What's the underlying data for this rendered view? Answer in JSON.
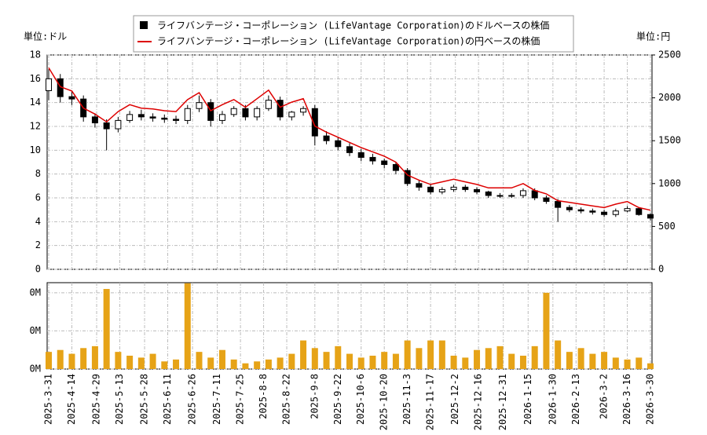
{
  "chart_data": {
    "type": "candlestick",
    "legend": [
      "ライフバンテージ・コーポレーション (LifeVantage Corporation)のドルベースの株価",
      "ライフバンテージ・コーポレーション (LifeVantage Corporation)の円ベースの株価"
    ],
    "y_unit": "単位:ドル",
    "y2_unit": "単位:円",
    "x": [
      "2025-3-31",
      "2025-4-7",
      "2025-4-14",
      "2025-4-21",
      "2025-4-28",
      "2025-5-5",
      "2025-5-12",
      "2025-5-19",
      "2025-5-26",
      "2025-6-2",
      "2025-6-9",
      "2025-6-16",
      "2025-6-23",
      "2025-6-30",
      "2025-7-7",
      "2025-7-14",
      "2025-7-21",
      "2025-7-28",
      "2025-8-4",
      "2025-8-11",
      "2025-8-18",
      "2025-8-25",
      "2025-9-1",
      "2025-9-8",
      "2025-9-15",
      "2025-9-22",
      "2025-9-29",
      "2025-10-6",
      "2025-10-13",
      "2025-10-20",
      "2025-10-27",
      "2025-11-3",
      "2025-11-10",
      "2025-11-17",
      "2025-11-24",
      "2025-12-1",
      "2025-12-8",
      "2025-12-15",
      "2025-12-22",
      "2025-12-29",
      "2026-1-5",
      "2026-1-12",
      "2026-1-19",
      "2026-1-26",
      "2026-2-2",
      "2026-2-9",
      "2026-2-16",
      "2026-2-23",
      "2026-3-2",
      "2026-3-9",
      "2026-3-16",
      "2026-3-23",
      "2026-3-30"
    ],
    "open": [
      15.0,
      16.0,
      14.5,
      14.3,
      12.8,
      12.3,
      11.8,
      12.5,
      13.0,
      12.8,
      12.7,
      12.6,
      12.5,
      13.5,
      14.0,
      12.5,
      13.0,
      13.5,
      12.8,
      13.5,
      14.2,
      12.8,
      13.2,
      13.5,
      11.2,
      10.8,
      10.3,
      9.8,
      9.4,
      9.1,
      8.8,
      8.3,
      7.2,
      6.9,
      6.5,
      6.7,
      6.9,
      6.7,
      6.5,
      6.2,
      6.2,
      6.2,
      6.6,
      6.0,
      5.7,
      5.2,
      5.0,
      4.9,
      4.8,
      4.6,
      4.9,
      5.1,
      4.6
    ],
    "high": [
      16.8,
      16.4,
      15.0,
      14.6,
      13.1,
      12.6,
      12.8,
      13.3,
      13.4,
      13.1,
      13.0,
      12.9,
      13.8,
      14.6,
      14.3,
      13.3,
      13.7,
      13.8,
      13.7,
      14.6,
      14.5,
      13.3,
      13.7,
      13.8,
      11.6,
      11.1,
      10.6,
      10.1,
      9.7,
      9.3,
      9.0,
      8.5,
      7.5,
      7.1,
      6.9,
      7.1,
      7.1,
      6.9,
      6.6,
      6.4,
      6.4,
      6.8,
      6.8,
      6.2,
      5.9,
      5.4,
      5.2,
      5.1,
      5.0,
      5.1,
      5.3,
      5.2,
      4.7
    ],
    "low": [
      14.2,
      14.0,
      13.8,
      12.4,
      11.9,
      10.0,
      11.5,
      12.3,
      12.5,
      12.4,
      12.3,
      12.2,
      12.2,
      13.2,
      12.0,
      12.2,
      12.8,
      12.5,
      12.5,
      13.3,
      12.5,
      12.5,
      12.9,
      10.4,
      10.5,
      10.0,
      9.5,
      9.1,
      8.8,
      8.5,
      8.0,
      7.0,
      6.6,
      6.3,
      6.3,
      6.5,
      6.5,
      6.3,
      6.0,
      6.0,
      6.0,
      6.0,
      5.8,
      5.5,
      4.0,
      4.8,
      4.7,
      4.6,
      4.4,
      4.4,
      4.8,
      4.5,
      4.1
    ],
    "close": [
      16.0,
      14.5,
      14.3,
      12.8,
      12.3,
      11.8,
      12.5,
      13.0,
      12.8,
      12.7,
      12.6,
      12.5,
      13.5,
      14.0,
      12.5,
      13.0,
      13.5,
      12.8,
      13.5,
      14.2,
      12.8,
      13.2,
      13.5,
      11.2,
      10.8,
      10.3,
      9.8,
      9.4,
      9.1,
      8.8,
      8.3,
      7.2,
      6.9,
      6.5,
      6.7,
      6.9,
      6.7,
      6.5,
      6.2,
      6.2,
      6.2,
      6.6,
      6.0,
      5.7,
      5.2,
      5.0,
      4.9,
      4.8,
      4.6,
      4.9,
      5.1,
      4.6,
      4.3
    ],
    "candle_color": "#000000",
    "series": [
      {
        "name": "ライフバンテージ・コーポレーション (LifeVantage Corporation)の円ベースの株価",
        "color": "#dd0000",
        "axis": "y2",
        "values": [
          2350,
          2130,
          2080,
          1880,
          1810,
          1720,
          1840,
          1920,
          1880,
          1870,
          1850,
          1840,
          1980,
          2060,
          1850,
          1920,
          1980,
          1890,
          1990,
          2090,
          1890,
          1950,
          1990,
          1670,
          1600,
          1540,
          1480,
          1420,
          1370,
          1320,
          1250,
          1100,
          1040,
          990,
          1020,
          1050,
          1020,
          990,
          950,
          950,
          950,
          1000,
          920,
          880,
          800,
          780,
          760,
          740,
          720,
          760,
          790,
          720,
          690
        ]
      }
    ],
    "volume": {
      "color": "#e6a317",
      "values": [
        90000,
        100000,
        80000,
        110000,
        120000,
        420000,
        90000,
        70000,
        60000,
        80000,
        40000,
        50000,
        450000,
        90000,
        60000,
        100000,
        50000,
        30000,
        40000,
        50000,
        60000,
        80000,
        150000,
        110000,
        90000,
        120000,
        80000,
        60000,
        70000,
        90000,
        80000,
        150000,
        110000,
        150000,
        150000,
        70000,
        60000,
        100000,
        110000,
        120000,
        80000,
        70000,
        120000,
        400000,
        150000,
        90000,
        110000,
        80000,
        90000,
        60000,
        50000,
        60000,
        30000
      ],
      "ylim": [
        0,
        453000
      ],
      "yticks": [
        {
          "value": 0,
          "label": "0M"
        },
        {
          "value": 200000,
          "label": "0M"
        },
        {
          "value": 400000,
          "label": "0M"
        }
      ]
    },
    "xlim": [
      "2025-3-31",
      "2026-3-30"
    ],
    "xticks": [
      "2025-3-31",
      "2025-4-14",
      "2025-4-29",
      "2025-5-13",
      "2025-5-28",
      "2025-6-11",
      "2025-6-26",
      "2025-7-11",
      "2025-7-25",
      "2025-8-8",
      "2025-8-22",
      "2025-9-8",
      "2025-9-22",
      "2025-10-6",
      "2025-10-20",
      "2025-11-3",
      "2025-11-17",
      "2025-12-2",
      "2025-12-16",
      "2025-12-31",
      "2026-1-15",
      "2026-1-30",
      "2026-2-13",
      "2026-3-2",
      "2026-3-16",
      "2026-3-30"
    ],
    "ylim": [
      0,
      18
    ],
    "yticks": [
      0,
      2,
      4,
      6,
      8,
      10,
      12,
      14,
      16,
      18
    ],
    "y2lim": [
      0,
      2500
    ],
    "y2ticks": [
      0,
      500,
      1000,
      1500,
      2000,
      2500
    ],
    "grid": true
  }
}
